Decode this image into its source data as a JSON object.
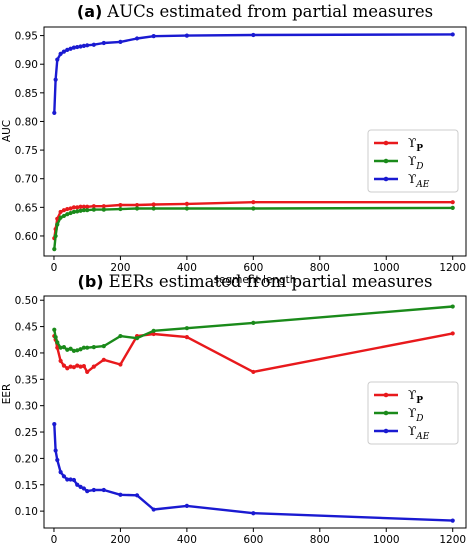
{
  "chart_data": [
    {
      "type": "line",
      "title_tag": "(a)",
      "title": "AUCs estimated from partial measures",
      "xlabel": "segment length",
      "ylabel": "AUC",
      "xlim": [
        -30,
        1240
      ],
      "ylim": [
        0.565,
        0.965
      ],
      "xticks": [
        0,
        200,
        400,
        600,
        800,
        1000,
        1200
      ],
      "yticks": [
        0.6,
        0.65,
        0.7,
        0.75,
        0.8,
        0.85,
        0.9,
        0.95
      ],
      "ytick_labels": [
        "0.60",
        "0.65",
        "0.70",
        "0.75",
        "0.80",
        "0.85",
        "0.90",
        "0.95"
      ],
      "legend_position": "center-right",
      "grid": false,
      "x": [
        1,
        5,
        10,
        20,
        30,
        40,
        50,
        60,
        70,
        80,
        90,
        100,
        120,
        150,
        200,
        250,
        300,
        400,
        600,
        1200
      ],
      "series": [
        {
          "name": "ϒ",
          "sub": "P",
          "sub_style": "bold",
          "color": "#e8191c",
          "values": [
            0.596,
            0.612,
            0.63,
            0.642,
            0.645,
            0.647,
            0.648,
            0.65,
            0.65,
            0.651,
            0.651,
            0.651,
            0.652,
            0.652,
            0.654,
            0.654,
            0.655,
            0.656,
            0.659,
            0.659
          ]
        },
        {
          "name": "ϒ",
          "sub": "D",
          "sub_style": "italic",
          "color": "#1a8a1a",
          "values": [
            0.577,
            0.6,
            0.62,
            0.632,
            0.635,
            0.638,
            0.64,
            0.642,
            0.643,
            0.644,
            0.645,
            0.645,
            0.646,
            0.646,
            0.647,
            0.648,
            0.648,
            0.648,
            0.648,
            0.649
          ]
        },
        {
          "name": "ϒ",
          "sub": "AE",
          "sub_style": "italic",
          "color": "#1a1ad1",
          "values": [
            0.815,
            0.873,
            0.908,
            0.918,
            0.922,
            0.925,
            0.927,
            0.929,
            0.93,
            0.931,
            0.932,
            0.933,
            0.934,
            0.937,
            0.939,
            0.945,
            0.949,
            0.95,
            0.951,
            0.952
          ]
        }
      ]
    },
    {
      "type": "line",
      "title_tag": "(b)",
      "title": "EERs estimated from partial measures",
      "xlabel": "segment length",
      "ylabel": "EER",
      "xlim": [
        -30,
        1240
      ],
      "ylim": [
        0.068,
        0.508
      ],
      "xticks": [
        0,
        200,
        400,
        600,
        800,
        1000,
        1200
      ],
      "yticks": [
        0.1,
        0.15,
        0.2,
        0.25,
        0.3,
        0.35,
        0.4,
        0.45,
        0.5
      ],
      "ytick_labels": [
        "0.10",
        "0.15",
        "0.20",
        "0.25",
        "0.30",
        "0.35",
        "0.40",
        "0.45",
        "0.50"
      ],
      "legend_position": "center-right",
      "grid": false,
      "x": [
        1,
        5,
        10,
        20,
        30,
        40,
        50,
        60,
        70,
        80,
        90,
        100,
        120,
        150,
        200,
        250,
        300,
        400,
        600,
        1200
      ],
      "series": [
        {
          "name": "ϒ",
          "sub": "P",
          "sub_style": "bold",
          "color": "#e8191c",
          "values": [
            0.432,
            0.425,
            0.41,
            0.385,
            0.376,
            0.371,
            0.374,
            0.373,
            0.376,
            0.374,
            0.375,
            0.364,
            0.374,
            0.387,
            0.378,
            0.432,
            0.436,
            0.43,
            0.364,
            0.437
          ]
        },
        {
          "name": "ϒ",
          "sub": "D",
          "sub_style": "italic",
          "color": "#1a8a1a",
          "values": [
            0.444,
            0.43,
            0.42,
            0.41,
            0.411,
            0.406,
            0.408,
            0.404,
            0.405,
            0.407,
            0.41,
            0.41,
            0.411,
            0.413,
            0.432,
            0.428,
            0.442,
            0.447,
            0.457,
            0.488
          ]
        },
        {
          "name": "ϒ",
          "sub": "AE",
          "sub_style": "italic",
          "color": "#1a1ad1",
          "values": [
            0.265,
            0.215,
            0.197,
            0.174,
            0.166,
            0.16,
            0.16,
            0.159,
            0.15,
            0.146,
            0.143,
            0.138,
            0.14,
            0.14,
            0.131,
            0.13,
            0.103,
            0.11,
            0.096,
            0.082
          ]
        }
      ]
    }
  ]
}
